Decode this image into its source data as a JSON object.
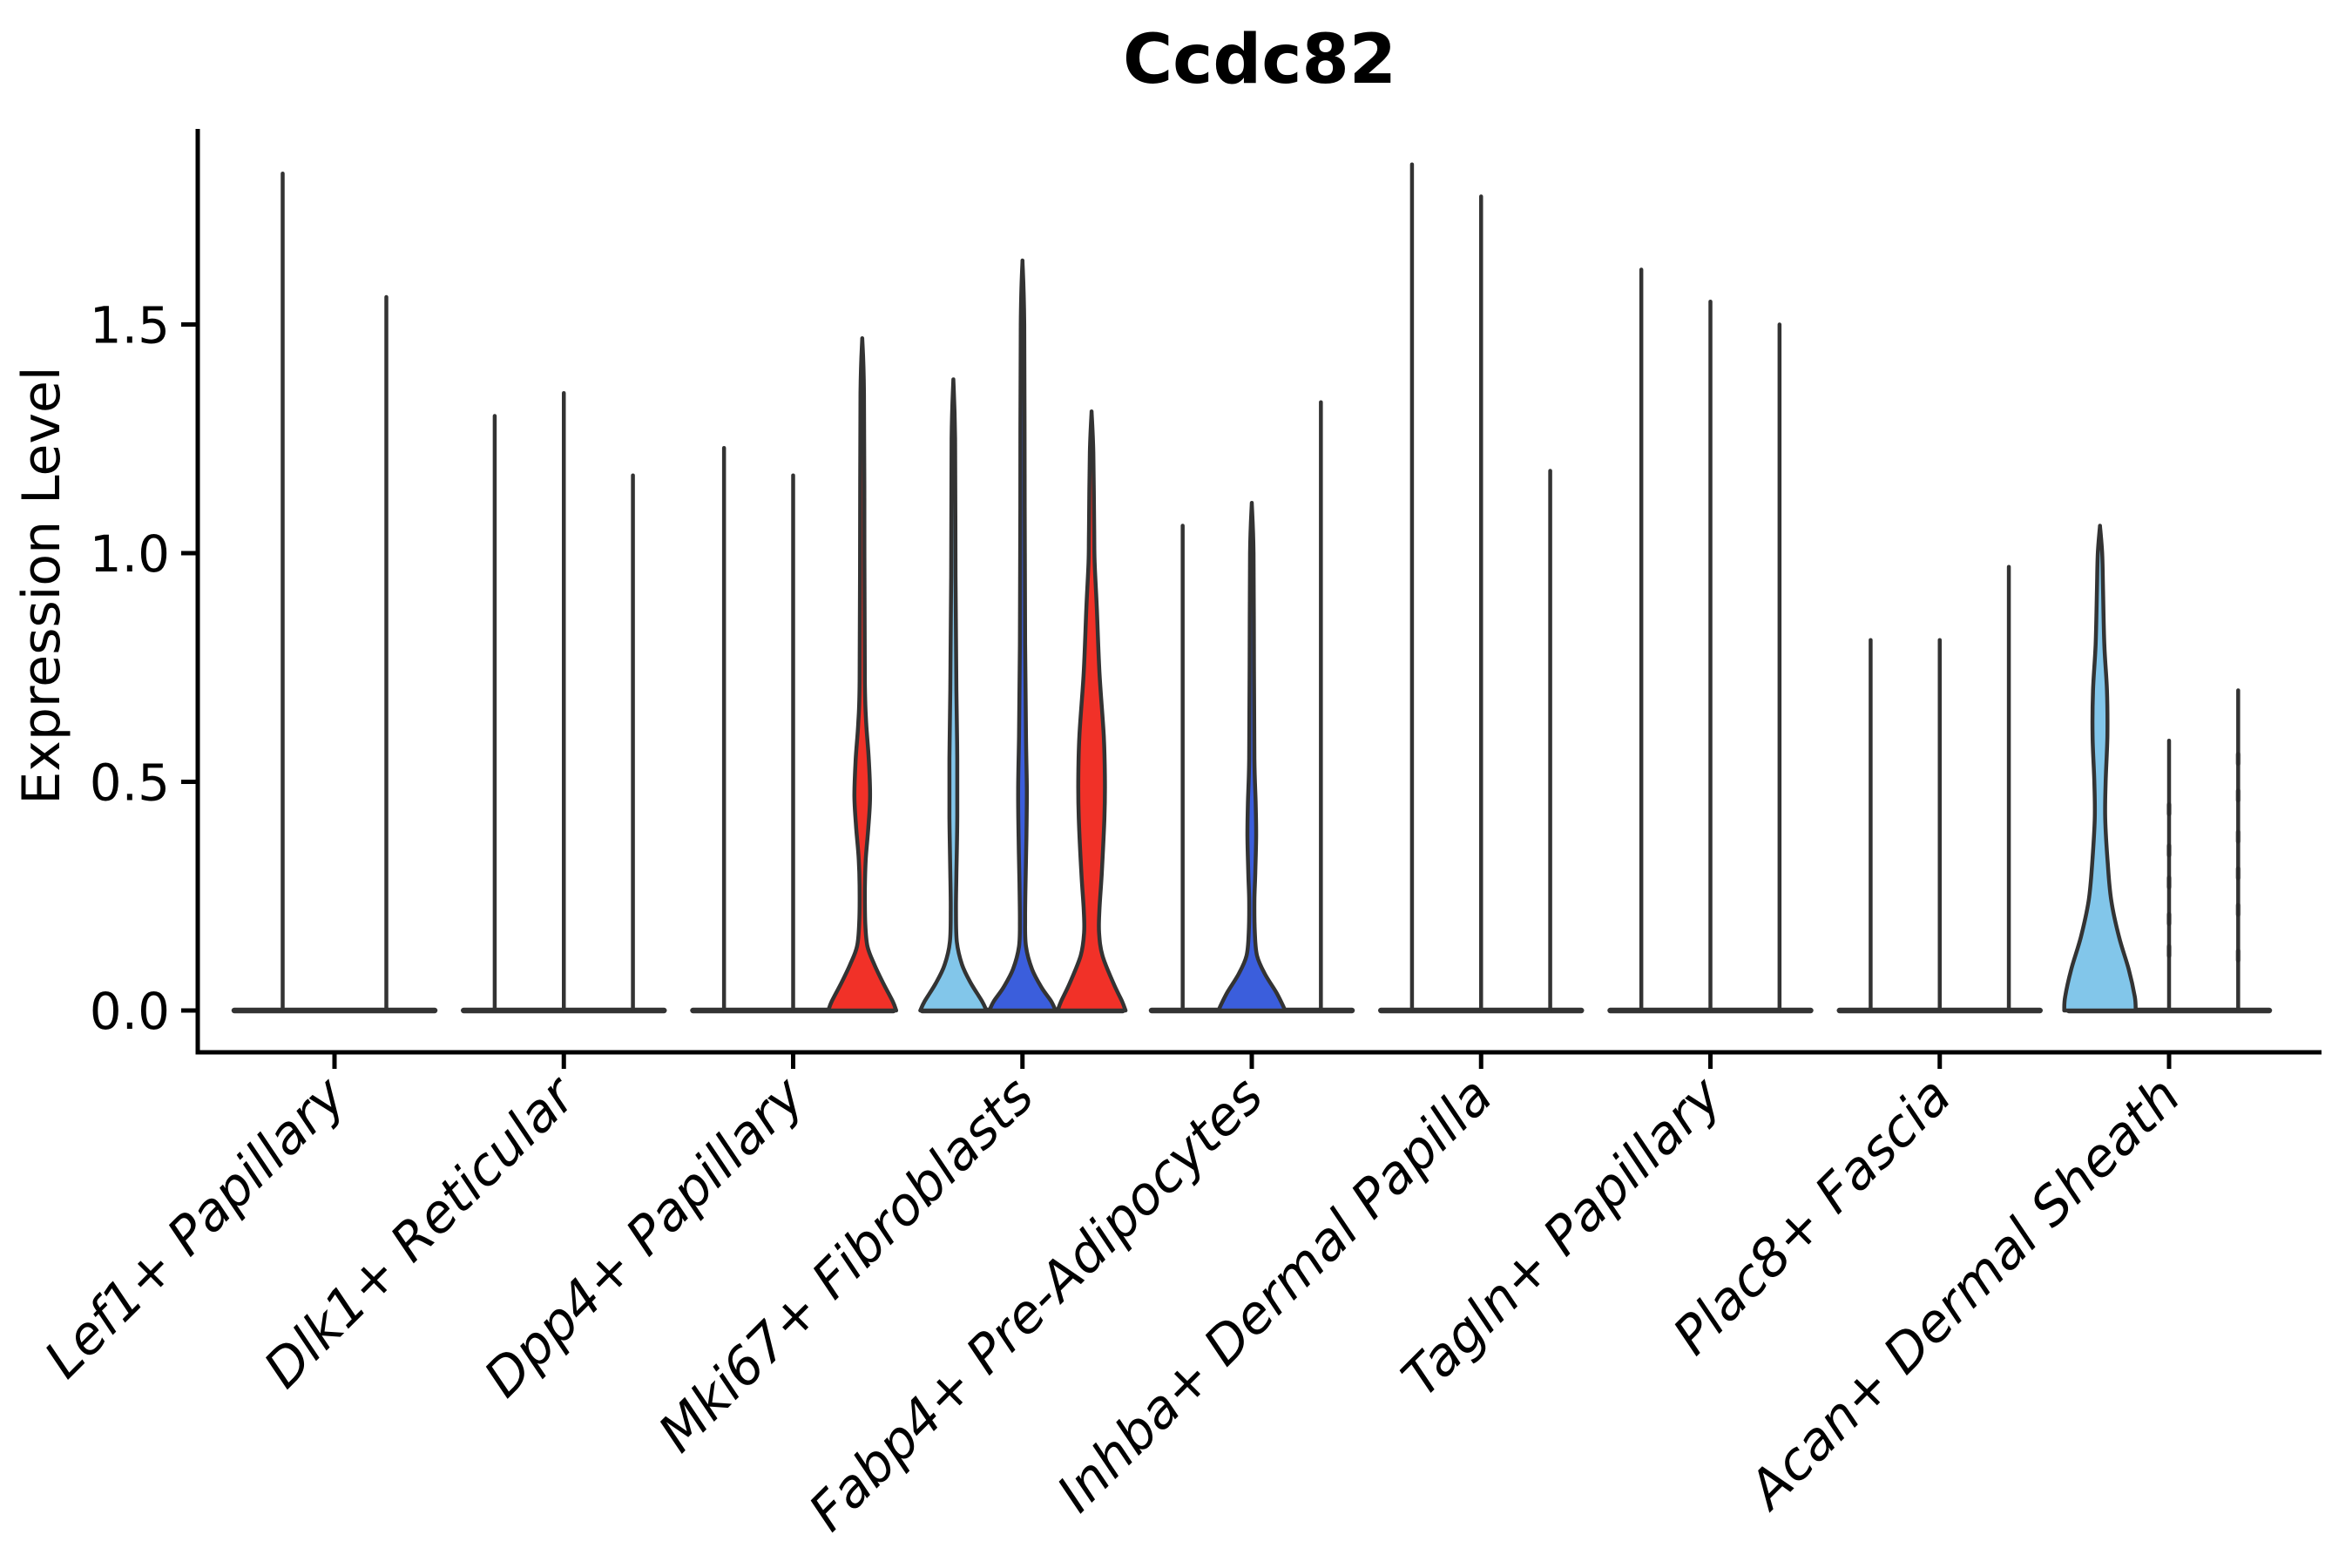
{
  "title": "Ccdc82",
  "axes": {
    "y_label": "Expression Level",
    "y_tick_labels": [
      "0.0",
      "0.5",
      "1.0",
      "1.5"
    ],
    "y_tick_values": [
      0.0,
      0.5,
      1.0,
      1.5
    ]
  },
  "colors": {
    "red": "#f13128",
    "light_blue": "#82c6ea",
    "dark_blue": "#3b5edc",
    "outline": "#333333",
    "axis": "#000000",
    "background": "#ffffff"
  },
  "chart_data": {
    "type": "violin",
    "title": "Ccdc82",
    "xlabel": "",
    "ylabel": "Expression Level",
    "ylim": [
      -0.09,
      1.92
    ],
    "yticks": [
      0.0,
      0.5,
      1.0,
      1.5
    ],
    "grid": false,
    "legend": "none",
    "categories": [
      "Lef1+ Papillary",
      "Dlk1+ Reticular",
      "Dpp4+ Papillary",
      "Mki67+ Fibroblasts",
      "Fabp4+ Pre-Adipocytes",
      "Inhba+ Dermal Papilla",
      "Tagln+ Papillary",
      "Plac8+ Fascia",
      "Acan+ Dermal Sheath"
    ],
    "groups": [
      {
        "label": "Lef1+ Papillary",
        "violins": [
          {
            "max": 1.83,
            "color": "white"
          },
          {
            "max": 1.56,
            "color": "white"
          }
        ]
      },
      {
        "label": "Dlk1+ Reticular",
        "violins": [
          {
            "max": 1.3,
            "color": "white"
          },
          {
            "max": 1.35,
            "color": "white"
          },
          {
            "max": 1.17,
            "color": "white"
          }
        ]
      },
      {
        "label": "Dpp4+ Papillary",
        "violins": [
          {
            "max": 1.23,
            "color": "white"
          },
          {
            "max": 1.17,
            "color": "white"
          },
          {
            "max": 1.47,
            "color": "red",
            "profile": "red_lens"
          }
        ]
      },
      {
        "label": "Mki67+ Fibroblasts",
        "violins": [
          {
            "max": 1.38,
            "color": "light_blue",
            "profile": "thin_sliver"
          },
          {
            "max": 1.64,
            "color": "dark_blue",
            "profile": "thin_sliver_tall"
          },
          {
            "max": 1.31,
            "color": "red",
            "profile": "red_cone"
          }
        ]
      },
      {
        "label": "Fabp4+ Pre-Adipocytes",
        "violins": [
          {
            "max": 1.06,
            "color": "white"
          },
          {
            "max": 1.11,
            "color": "dark_blue",
            "profile": "blue_small"
          },
          {
            "max": 1.33,
            "color": "white"
          }
        ]
      },
      {
        "label": "Inhba+ Dermal Papilla",
        "violins": [
          {
            "max": 1.85,
            "color": "white"
          },
          {
            "max": 1.78,
            "color": "white"
          },
          {
            "max": 1.18,
            "color": "white"
          }
        ]
      },
      {
        "label": "Tagln+ Papillary",
        "violins": [
          {
            "max": 1.62,
            "color": "white"
          },
          {
            "max": 1.55,
            "color": "white"
          },
          {
            "max": 1.5,
            "color": "white"
          }
        ]
      },
      {
        "label": "Plac8+ Fascia",
        "violins": [
          {
            "max": 0.81,
            "color": "white"
          },
          {
            "max": 0.81,
            "color": "white"
          },
          {
            "max": 0.97,
            "color": "white"
          }
        ]
      },
      {
        "label": "Acan+ Dermal Sheath",
        "violins": [
          {
            "max": 1.06,
            "color": "light_blue",
            "profile": "blue_funnel"
          },
          {
            "max": 0.59,
            "color": "white",
            "dots": [
              0.13,
              0.2,
              0.28,
              0.35,
              0.44
            ]
          },
          {
            "max": 0.7,
            "color": "white",
            "dots": [
              0.12,
              0.22,
              0.3,
              0.38,
              0.47,
              0.55
            ]
          }
        ]
      }
    ],
    "profiles": {
      "red_lens": [
        [
          1.47,
          0
        ],
        [
          1.35,
          2
        ],
        [
          1.0,
          2.5
        ],
        [
          0.72,
          3
        ],
        [
          0.63,
          4.5
        ],
        [
          0.55,
          7.5
        ],
        [
          0.47,
          9
        ],
        [
          0.4,
          7
        ],
        [
          0.33,
          4
        ],
        [
          0.26,
          3
        ],
        [
          0.19,
          3.5
        ],
        [
          0.14,
          6
        ],
        [
          0.1,
          14
        ],
        [
          0.06,
          24
        ],
        [
          0.02,
          35
        ],
        [
          0,
          39
        ]
      ],
      "thin_sliver": [
        [
          1.38,
          0
        ],
        [
          1.25,
          2
        ],
        [
          0.95,
          2.5
        ],
        [
          0.7,
          3.5
        ],
        [
          0.55,
          4.5
        ],
        [
          0.42,
          4.5
        ],
        [
          0.3,
          3.5
        ],
        [
          0.22,
          3
        ],
        [
          0.15,
          4
        ],
        [
          0.1,
          10
        ],
        [
          0.06,
          20
        ],
        [
          0.02,
          33
        ],
        [
          0,
          38
        ]
      ],
      "thin_sliver_tall": [
        [
          1.64,
          0
        ],
        [
          1.5,
          2
        ],
        [
          1.1,
          2.5
        ],
        [
          0.8,
          3
        ],
        [
          0.6,
          4
        ],
        [
          0.48,
          5
        ],
        [
          0.38,
          4.5
        ],
        [
          0.28,
          3.5
        ],
        [
          0.2,
          3
        ],
        [
          0.14,
          4
        ],
        [
          0.09,
          11
        ],
        [
          0.05,
          22
        ],
        [
          0.02,
          33
        ],
        [
          0,
          38
        ]
      ],
      "red_cone": [
        [
          1.31,
          0
        ],
        [
          1.22,
          2
        ],
        [
          1.05,
          3
        ],
        [
          0.98,
          3.5
        ],
        [
          0.88,
          6
        ],
        [
          0.74,
          9
        ],
        [
          0.6,
          14
        ],
        [
          0.5,
          15.3
        ],
        [
          0.42,
          14.7
        ],
        [
          0.3,
          11.7
        ],
        [
          0.22,
          9
        ],
        [
          0.17,
          8.6
        ],
        [
          0.12,
          12.5
        ],
        [
          0.06,
          25
        ],
        [
          0.02,
          35
        ],
        [
          0,
          39
        ]
      ],
      "blue_small": [
        [
          1.11,
          0
        ],
        [
          1.0,
          2
        ],
        [
          0.75,
          2.5
        ],
        [
          0.55,
          3
        ],
        [
          0.45,
          4.5
        ],
        [
          0.38,
          5
        ],
        [
          0.3,
          4
        ],
        [
          0.24,
          3
        ],
        [
          0.17,
          3.5
        ],
        [
          0.12,
          6
        ],
        [
          0.08,
          15
        ],
        [
          0.04,
          28
        ],
        [
          0.01,
          36
        ],
        [
          0,
          38
        ]
      ],
      "blue_funnel": [
        [
          1.06,
          0
        ],
        [
          1.0,
          2.5
        ],
        [
          0.92,
          3.5
        ],
        [
          0.8,
          5
        ],
        [
          0.7,
          8
        ],
        [
          0.6,
          8.5
        ],
        [
          0.5,
          6.5
        ],
        [
          0.42,
          6
        ],
        [
          0.32,
          9
        ],
        [
          0.24,
          13
        ],
        [
          0.16,
          22
        ],
        [
          0.09,
          33
        ],
        [
          0.03,
          40
        ],
        [
          0,
          41
        ]
      ]
    }
  }
}
